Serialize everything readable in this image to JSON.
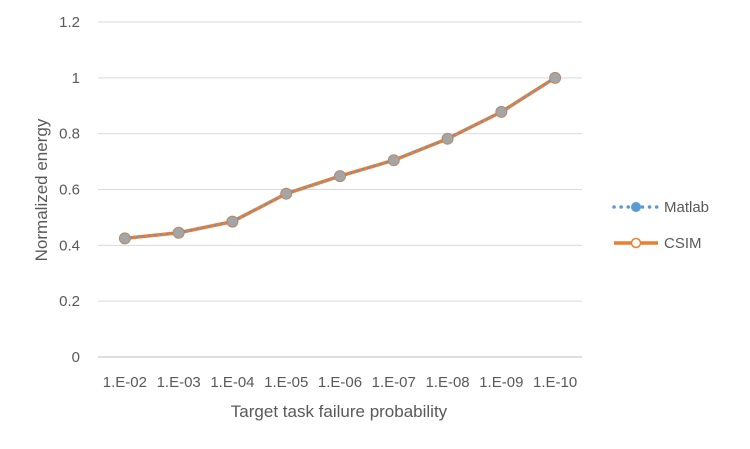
{
  "chart_data": {
    "type": "line",
    "xlabel": "Target task failure probability",
    "ylabel": "Normalized energy",
    "categories": [
      "1.E-02",
      "1.E-03",
      "1.E-04",
      "1.E-05",
      "1.E-06",
      "1.E-07",
      "1.E-08",
      "1.E-09",
      "1.E-10"
    ],
    "ylim": [
      0,
      1.2
    ],
    "yticks": [
      "0",
      "0.2",
      "0.4",
      "0.6",
      "0.8",
      "1",
      "1.2"
    ],
    "grid": true,
    "legend_position": "right",
    "series": [
      {
        "name": "Matlab",
        "style": "dotted",
        "marker": "filled-circle",
        "color": "#5B9BD5",
        "values": [
          0.425,
          0.445,
          0.485,
          0.585,
          0.648,
          0.705,
          0.782,
          0.878,
          1.0
        ]
      },
      {
        "name": "CSIM",
        "style": "solid",
        "marker": "hollow-circle",
        "color": "#ED7D31",
        "values": [
          0.425,
          0.445,
          0.485,
          0.585,
          0.648,
          0.705,
          0.782,
          0.878,
          1.0
        ]
      }
    ],
    "marker_fill_color": "#A5A5A5"
  }
}
